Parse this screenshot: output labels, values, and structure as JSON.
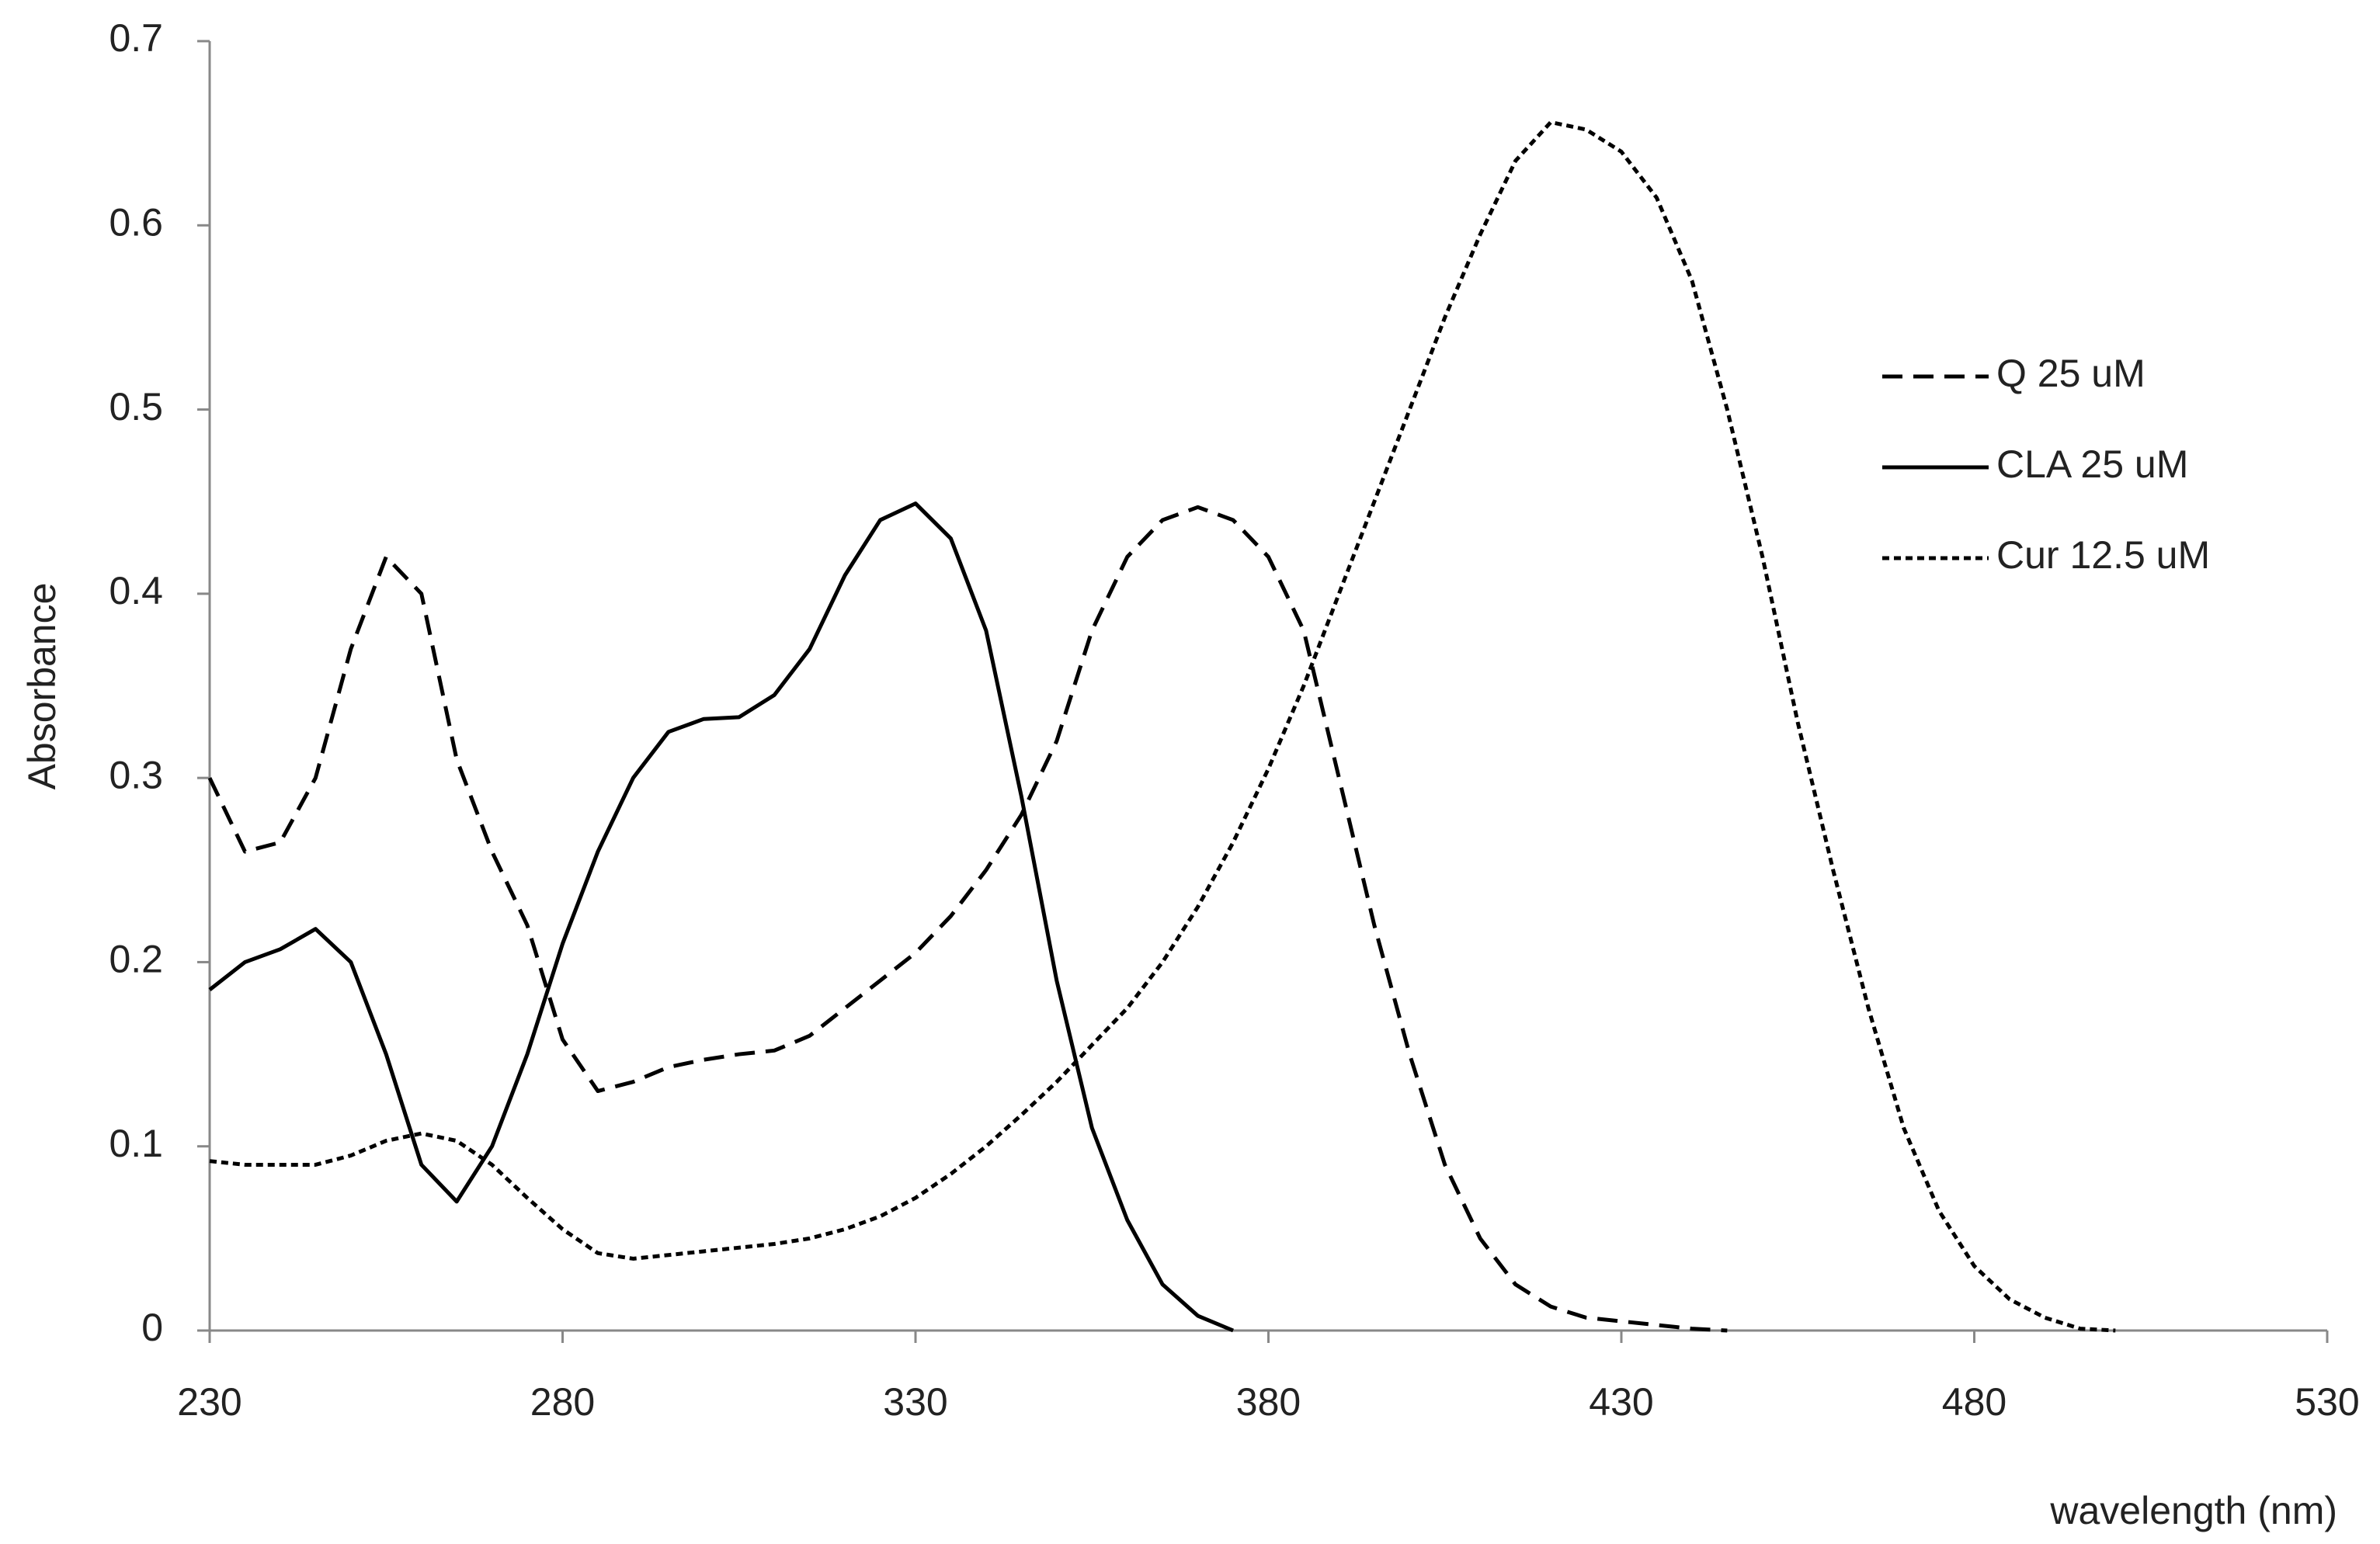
{
  "chart_data": {
    "type": "line",
    "x_label": "wavelength (nm)",
    "y_label": "Absorbance",
    "xlim": [
      230,
      530
    ],
    "xticks": [
      230,
      280,
      330,
      380,
      430,
      480,
      530
    ],
    "ylim": [
      0,
      0.7
    ],
    "yticks": [
      0,
      0.1,
      0.2,
      0.3,
      0.4,
      0.5,
      0.6,
      0.7
    ],
    "grid": false,
    "legend": "upper right",
    "x": [
      230,
      235,
      240,
      245,
      250,
      255,
      260,
      265,
      270,
      275,
      280,
      285,
      290,
      295,
      300,
      305,
      310,
      315,
      320,
      325,
      330,
      335,
      340,
      345,
      350,
      355,
      360,
      365,
      370,
      375,
      380,
      385,
      390,
      395,
      400,
      405,
      410,
      415,
      420,
      425,
      430,
      435,
      440,
      445,
      450,
      455,
      460,
      465,
      470,
      475,
      480,
      485,
      490,
      495,
      500
    ],
    "series": [
      {
        "name": "Q 25 uM",
        "color": "#000000",
        "style": "dashed",
        "values": [
          0.3,
          0.26,
          0.265,
          0.3,
          0.37,
          0.42,
          0.4,
          0.31,
          0.26,
          0.22,
          0.158,
          0.13,
          0.135,
          0.143,
          0.147,
          0.15,
          0.152,
          0.16,
          0.175,
          0.19,
          0.205,
          0.225,
          0.25,
          0.28,
          0.32,
          0.38,
          0.42,
          0.44,
          0.447,
          0.44,
          0.42,
          0.38,
          0.3,
          0.22,
          0.15,
          0.09,
          0.05,
          0.025,
          0.013,
          0.007,
          0.005,
          0.003,
          0.001,
          0,
          null,
          null,
          null,
          null,
          null,
          null,
          null,
          null,
          null,
          null,
          null
        ]
      },
      {
        "name": "CLA 25 uM",
        "color": "#000000",
        "style": "solid",
        "values": [
          0.185,
          0.2,
          0.207,
          0.218,
          0.2,
          0.15,
          0.09,
          0.07,
          0.1,
          0.15,
          0.21,
          0.26,
          0.3,
          0.325,
          0.332,
          0.333,
          0.345,
          0.37,
          0.41,
          0.44,
          0.449,
          0.43,
          0.38,
          0.29,
          0.19,
          0.11,
          0.06,
          0.025,
          0.008,
          0,
          null,
          null,
          null,
          null,
          null,
          null,
          null,
          null,
          null,
          null,
          null,
          null,
          null,
          null,
          null,
          null,
          null,
          null,
          null,
          null,
          null,
          null,
          null,
          null,
          null
        ]
      },
      {
        "name": "Cur 12.5 uM",
        "color": "#000000",
        "style": "dotted",
        "values": [
          0.092,
          0.09,
          0.09,
          0.09,
          0.095,
          0.103,
          0.107,
          0.103,
          0.09,
          0.072,
          0.055,
          0.042,
          0.039,
          0.041,
          0.043,
          0.045,
          0.047,
          0.05,
          0.055,
          0.062,
          0.072,
          0.085,
          0.1,
          0.117,
          0.135,
          0.155,
          0.175,
          0.2,
          0.23,
          0.265,
          0.305,
          0.35,
          0.4,
          0.45,
          0.5,
          0.55,
          0.595,
          0.635,
          0.656,
          0.652,
          0.64,
          0.615,
          0.57,
          0.5,
          0.42,
          0.33,
          0.25,
          0.175,
          0.11,
          0.065,
          0.035,
          0.017,
          0.007,
          0.001,
          0
        ]
      }
    ]
  }
}
